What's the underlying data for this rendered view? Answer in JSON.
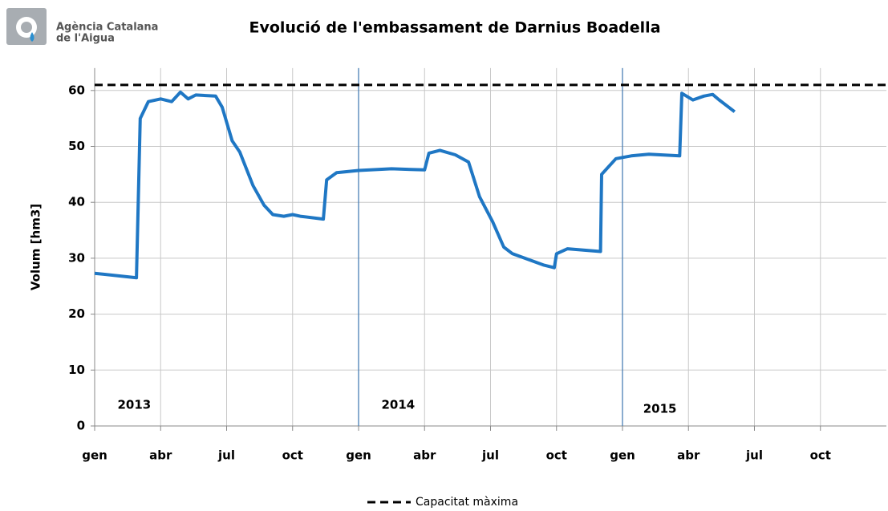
{
  "logo": [
    "Agència Catalana",
    "de l'Aigua"
  ],
  "chart_data": {
    "type": "line",
    "title": "Evolució de l'embassament de Darnius Boadella",
    "y_label": "Volum [hm3]",
    "series": [
      {
        "color": "#1f77c4",
        "x": [
          0,
          1.9,
          2.07,
          2.44,
          3,
          3.5,
          3.9,
          4.25,
          4.6,
          5.5,
          5.8,
          6.25,
          6.6,
          7.2,
          7.7,
          8.1,
          8.6,
          9,
          9.35,
          10.4,
          10.55,
          11,
          12,
          13.5,
          15,
          15.2,
          15.7,
          16.4,
          17,
          17.5,
          18.1,
          18.6,
          19,
          19.7,
          20.4,
          20.9,
          21,
          21.5,
          23,
          23.05,
          23.7,
          24.4,
          25.2,
          26.6,
          26.7,
          27.2,
          27.7,
          28.1,
          28.4,
          29.1
        ],
        "values": [
          27.3,
          26.5,
          55,
          58,
          58.5,
          58,
          59.7,
          58.5,
          59.2,
          59,
          57,
          51,
          49,
          43,
          39.5,
          37.8,
          37.5,
          37.8,
          37.5,
          37,
          44,
          45.3,
          45.7,
          46,
          45.8,
          48.8,
          49.3,
          48.5,
          47.2,
          41,
          36.5,
          32,
          30.8,
          29.8,
          28.8,
          28.3,
          30.8,
          31.7,
          31.2,
          45,
          47.8,
          48.3,
          48.6,
          48.3,
          59.5,
          58.3,
          59,
          59.3,
          58.3,
          56.2
        ]
      }
    ],
    "reference_line": {
      "name": "Capacitat màxima",
      "value": 61,
      "color": "#000000",
      "dashed": true
    },
    "year_lines": {
      "values": [
        12,
        24
      ],
      "color": "#4a7fb5"
    },
    "annotations": [
      {
        "text": "2013",
        "x": 1.8
      },
      {
        "text": "2014",
        "x": 13.8
      },
      {
        "text": "2015",
        "x": 25.7
      }
    ],
    "xlim": [
      0,
      36
    ],
    "xticks": [
      {
        "value": 0,
        "label": "gen"
      },
      {
        "value": 3,
        "label": "abr"
      },
      {
        "value": 6,
        "label": "jul"
      },
      {
        "value": 9,
        "label": "oct"
      },
      {
        "value": 12,
        "label": "gen"
      },
      {
        "value": 15,
        "label": "abr"
      },
      {
        "value": 18,
        "label": "jul"
      },
      {
        "value": 21,
        "label": "oct"
      },
      {
        "value": 24,
        "label": "gen"
      },
      {
        "value": 27,
        "label": "abr"
      },
      {
        "value": 30,
        "label": "jul"
      },
      {
        "value": 33,
        "label": "oct"
      }
    ],
    "ylim": [
      0,
      64
    ],
    "yticks": [
      0,
      10,
      20,
      30,
      40,
      50,
      60
    ],
    "grid": true
  }
}
